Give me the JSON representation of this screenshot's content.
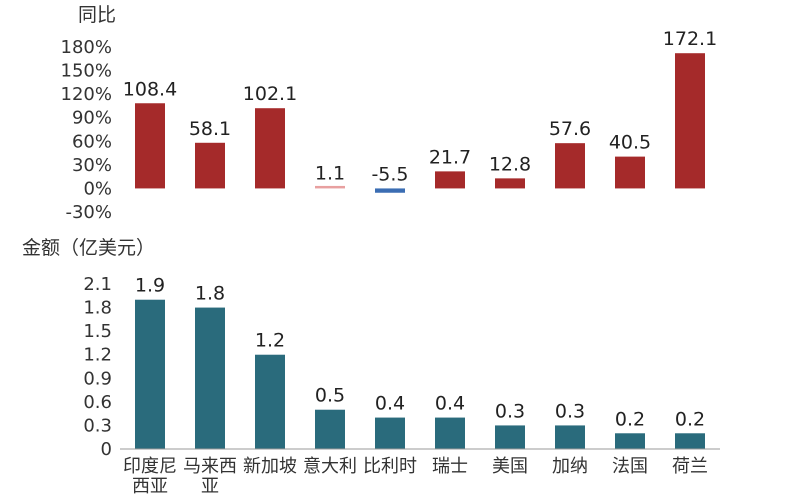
{
  "chart_data": [
    {
      "type": "bar",
      "ylabel": "同比",
      "ylim": [
        -30,
        180
      ],
      "yticks": [
        "180%",
        "150%",
        "120%",
        "90%",
        "60%",
        "30%",
        "0%",
        "-30%"
      ],
      "categories": [
        "印度尼西亚",
        "马来西亚",
        "新加坡",
        "意大利",
        "比利时",
        "瑞士",
        "美国",
        "加纳",
        "法国",
        "荷兰"
      ],
      "values": [
        108.4,
        58.1,
        102.1,
        1.1,
        -5.5,
        21.7,
        12.8,
        57.6,
        40.5,
        172.1
      ],
      "labels": [
        "108.4",
        "58.1",
        "102.1",
        "1.1",
        "-5.5",
        "21.7",
        "12.8",
        "57.6",
        "40.5",
        "172.1"
      ],
      "colors": {
        "positive": "#a52a2a",
        "negative": "#3b6db3",
        "small": "#e8a0a0"
      },
      "grid": false
    },
    {
      "type": "bar",
      "ylabel": "金额（亿美元）",
      "ylim": [
        0,
        2.1
      ],
      "yticks": [
        "2.1",
        "1.8",
        "1.5",
        "1.2",
        "0.9",
        "0.6",
        "0.3",
        "0"
      ],
      "categories": [
        "印度尼西亚",
        "马来西亚",
        "新加坡",
        "意大利",
        "比利时",
        "瑞士",
        "美国",
        "加纳",
        "法国",
        "荷兰"
      ],
      "category_lines": [
        [
          "印度尼",
          "西亚"
        ],
        [
          "马来西",
          "亚"
        ],
        [
          "新加坡"
        ],
        [
          "意大利"
        ],
        [
          "比利时"
        ],
        [
          "瑞士"
        ],
        [
          "美国"
        ],
        [
          "加纳"
        ],
        [
          "法国"
        ],
        [
          "荷兰"
        ]
      ],
      "values": [
        1.9,
        1.8,
        1.2,
        0.5,
        0.4,
        0.4,
        0.3,
        0.3,
        0.2,
        0.2
      ],
      "labels": [
        "1.9",
        "1.8",
        "1.2",
        "0.5",
        "0.4",
        "0.4",
        "0.3",
        "0.3",
        "0.2",
        "0.2"
      ],
      "colors": {
        "bar": "#2a6b7c",
        "axis": "#999999"
      },
      "grid": false
    }
  ]
}
